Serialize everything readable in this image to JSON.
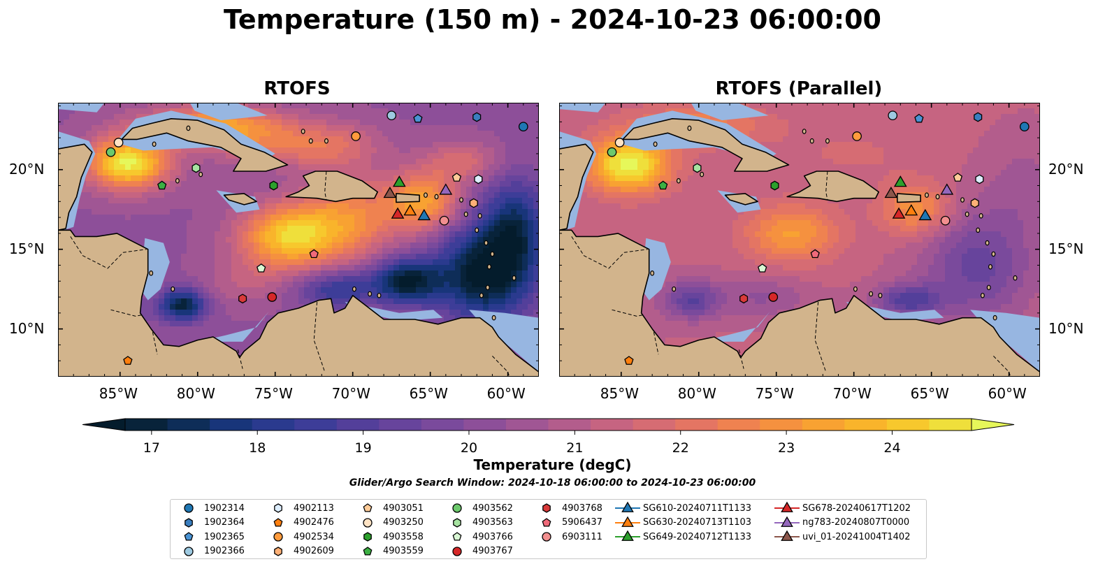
{
  "title": "Temperature (150 m) - 2024-10-23 06:00:00",
  "chart_data": [
    {
      "type": "heatmap",
      "title": "RTOFS",
      "x_ticks": [
        "85°W",
        "80°W",
        "75°W",
        "70°W",
        "65°W",
        "60°W"
      ],
      "y_ticks": [
        "20°N",
        "15°N",
        "10°N"
      ]
    },
    {
      "type": "heatmap",
      "title": "RTOFS (Parallel)",
      "x_ticks": [
        "85°W",
        "80°W",
        "75°W",
        "70°W",
        "65°W",
        "60°W"
      ],
      "y_ticks": [
        "20°N",
        "15°N",
        "10°N"
      ]
    }
  ],
  "colorbar": {
    "label": "Temperature (degC)",
    "ticks": [
      "17",
      "18",
      "19",
      "20",
      "21",
      "22",
      "23",
      "24"
    ],
    "min": 16.75,
    "max": 24.75,
    "colors": [
      "#08233a",
      "#0e2d58",
      "#18357a",
      "#2a3a8e",
      "#3d3d98",
      "#533f9a",
      "#67449c",
      "#7a4a9c",
      "#8d4f99",
      "#a05694",
      "#b35d8c",
      "#c66481",
      "#d66c73",
      "#e47563",
      "#ef8250",
      "#f5913f",
      "#f8a232",
      "#f9b42b",
      "#f7c82d",
      "#efdf3b"
    ],
    "under_color": "#041c2c",
    "over_color": "#e6f75a"
  },
  "search_window": "Glider/Argo Search Window: 2024-10-18 06:00:00 to 2024-10-23 06:00:00",
  "colors": {
    "land": "#d2b48c",
    "shelf": "#97b6e1",
    "cold": "#0b2a3f"
  },
  "legend": [
    {
      "label": "1902314",
      "marker": "circle",
      "color": "#1f77b4"
    },
    {
      "label": "1902364",
      "marker": "hexagon",
      "color": "#3a7ebf"
    },
    {
      "label": "1902365",
      "marker": "pentagon",
      "color": "#4a93d4"
    },
    {
      "label": "1902366",
      "marker": "circle",
      "color": "#9ecae1"
    },
    {
      "label": "4902113",
      "marker": "hexagon",
      "color": "#ddeeff"
    },
    {
      "label": "4902476",
      "marker": "pentagon",
      "color": "#ff7f0e"
    },
    {
      "label": "4902534",
      "marker": "circle",
      "color": "#ff9b3d"
    },
    {
      "label": "4902609",
      "marker": "hexagon",
      "color": "#ffb076"
    },
    {
      "label": "4903051",
      "marker": "pentagon",
      "color": "#ffcc99"
    },
    {
      "label": "4903250",
      "marker": "circle",
      "color": "#ffe3c4"
    },
    {
      "label": "4903558",
      "marker": "hexagon",
      "color": "#2ca02c"
    },
    {
      "label": "4903559",
      "marker": "pentagon",
      "color": "#3cb043"
    },
    {
      "label": "4903562",
      "marker": "circle",
      "color": "#6cc96c"
    },
    {
      "label": "4903563",
      "marker": "hexagon",
      "color": "#a6e3a1"
    },
    {
      "label": "4903766",
      "marker": "pentagon",
      "color": "#d9f7d4"
    },
    {
      "label": "4903767",
      "marker": "circle",
      "color": "#d62728"
    },
    {
      "label": "4903768",
      "marker": "hexagon",
      "color": "#d93a3a"
    },
    {
      "label": "5906437",
      "marker": "pentagon",
      "color": "#f06a7a"
    },
    {
      "label": "6903111",
      "marker": "circle",
      "color": "#f28f8f"
    },
    {
      "label": "SG610-20240711T1133",
      "marker": "triangle",
      "color": "#1f77b4"
    },
    {
      "label": "SG630-20240713T1103",
      "marker": "triangle",
      "color": "#ff7f0e"
    },
    {
      "label": "SG649-20240712T1133",
      "marker": "triangle",
      "color": "#2ca02c"
    },
    {
      "label": "SG678-20240617T1202",
      "marker": "triangle",
      "color": "#d62728"
    },
    {
      "label": "ng783-20240807T0000",
      "marker": "triangle",
      "color": "#9467bd"
    },
    {
      "label": "uvi_01-20241004T1402",
      "marker": "triangle",
      "color": "#8c564b"
    }
  ],
  "observations": [
    {
      "id": "1902314",
      "lon": -59.0,
      "lat": 22.7
    },
    {
      "id": "1902364",
      "lon": -62.0,
      "lat": 23.3
    },
    {
      "id": "1902365",
      "lon": -65.8,
      "lat": 23.2
    },
    {
      "id": "1902366",
      "lon": -67.5,
      "lat": 23.4
    },
    {
      "id": "4902113",
      "lon": -61.9,
      "lat": 19.4
    },
    {
      "id": "4902476",
      "lon": -84.5,
      "lat": 8.0
    },
    {
      "id": "4902534",
      "lon": -69.8,
      "lat": 22.1
    },
    {
      "id": "4902609",
      "lon": -62.2,
      "lat": 17.9
    },
    {
      "id": "4903051",
      "lon": -63.3,
      "lat": 19.5
    },
    {
      "id": "4903250",
      "lon": -85.1,
      "lat": 21.7
    },
    {
      "id": "4903558",
      "lon": -75.1,
      "lat": 19.0
    },
    {
      "id": "4903559",
      "lon": -82.3,
      "lat": 19.0
    },
    {
      "id": "4903562",
      "lon": -85.6,
      "lat": 21.1
    },
    {
      "id": "4903563",
      "lon": -80.1,
      "lat": 20.1
    },
    {
      "id": "4903766",
      "lon": -75.9,
      "lat": 13.8
    },
    {
      "id": "4903767",
      "lon": -75.2,
      "lat": 12.0
    },
    {
      "id": "4903768",
      "lon": -77.1,
      "lat": 11.9
    },
    {
      "id": "5906437",
      "lon": -72.5,
      "lat": 14.7
    },
    {
      "id": "6903111",
      "lon": -64.1,
      "lat": 16.8
    },
    {
      "id": "SG610-20240711T1133",
      "lon": -65.4,
      "lat": 17.1
    },
    {
      "id": "SG630-20240713T1103",
      "lon": -66.3,
      "lat": 17.4
    },
    {
      "id": "SG649-20240712T1133",
      "lon": -67.0,
      "lat": 19.2
    },
    {
      "id": "SG678-20240617T1202",
      "lon": -67.1,
      "lat": 17.2
    },
    {
      "id": "ng783-20240807T0000",
      "lon": -64.0,
      "lat": 18.7
    },
    {
      "id": "uvi_01-20241004T1402",
      "lon": -67.6,
      "lat": 18.5
    }
  ]
}
